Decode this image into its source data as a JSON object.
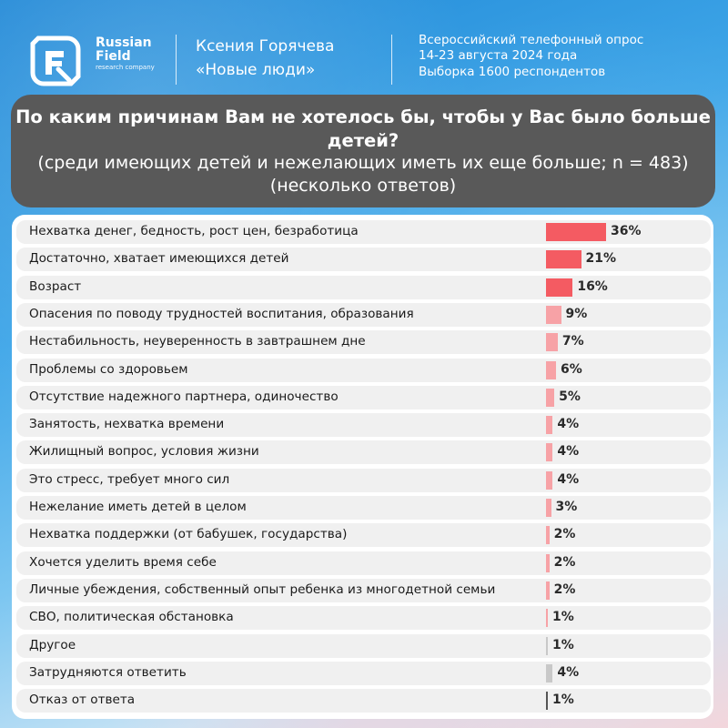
{
  "header": {
    "logo": {
      "line1": "Russian",
      "line2": "Field",
      "sub": "research company"
    },
    "author": {
      "name": "Ксения Горячева",
      "party": "«Новые люди»"
    },
    "survey": {
      "line1": "Всероссийский телефонный опрос",
      "line2": "14-23 августа 2024 года",
      "line3": "Выборка 1600 респондентов"
    }
  },
  "colors": {
    "bar_high": "#f45b62",
    "bar_mid": "#f7a2a6",
    "bar_low": "#f1909a",
    "bar_neutral": "#c8c8c8",
    "bar_refusal": "#555555",
    "title_bg": "#595959"
  },
  "chart_data": {
    "type": "bar",
    "orientation": "horizontal",
    "title": "По каким причинам Вам не хотелось бы, чтобы у Вас было больше детей?",
    "subtitle": "(среди имеющих детей и нежелающих иметь их еще больше; n = 483) (несколько ответов)",
    "unit": "%",
    "categories": [
      "Нехватка денег, бедность, рост цен, безработица",
      "Достаточно, хватает имеющихся детей",
      "Возраст",
      "Опасения по поводу трудностей воспитания, образования",
      "Нестабильность, неуверенность в завтрашнем дне",
      "Проблемы со здоровьем",
      "Отсутствие надежного партнера, одиночество",
      "Занятость, нехватка времени",
      "Жилищный вопрос, условия жизни",
      "Это стресс, требует много сил",
      "Нежелание иметь детей в целом",
      "Нехватка поддержки (от бабушек, государства)",
      "Хочется уделить время себе",
      "Личные убеждения, собственный опыт ребенка из многодетной семьи",
      "СВО, политическая обстановка",
      "Другое",
      "Затрудняются ответить",
      "Отказ от ответа"
    ],
    "values": [
      36,
      21,
      16,
      9,
      7,
      6,
      5,
      4,
      4,
      4,
      3,
      2,
      2,
      2,
      1,
      1,
      4,
      1
    ],
    "value_labels": [
      "36%",
      "21%",
      "16%",
      "9%",
      "7%",
      "6%",
      "5%",
      "4%",
      "4%",
      "4%",
      "3%",
      "2%",
      "2%",
      "2%",
      "1%",
      "1%",
      "4%",
      "1%"
    ],
    "bar_color_keys": [
      "bar_high",
      "bar_high",
      "bar_high",
      "bar_mid",
      "bar_mid",
      "bar_mid",
      "bar_mid",
      "bar_mid",
      "bar_mid",
      "bar_mid",
      "bar_mid",
      "bar_mid",
      "bar_mid",
      "bar_mid",
      "bar_mid",
      "bar_neutral",
      "bar_neutral",
      "bar_refusal"
    ],
    "xlim": [
      0,
      36
    ],
    "grid": false,
    "legend": "none"
  }
}
